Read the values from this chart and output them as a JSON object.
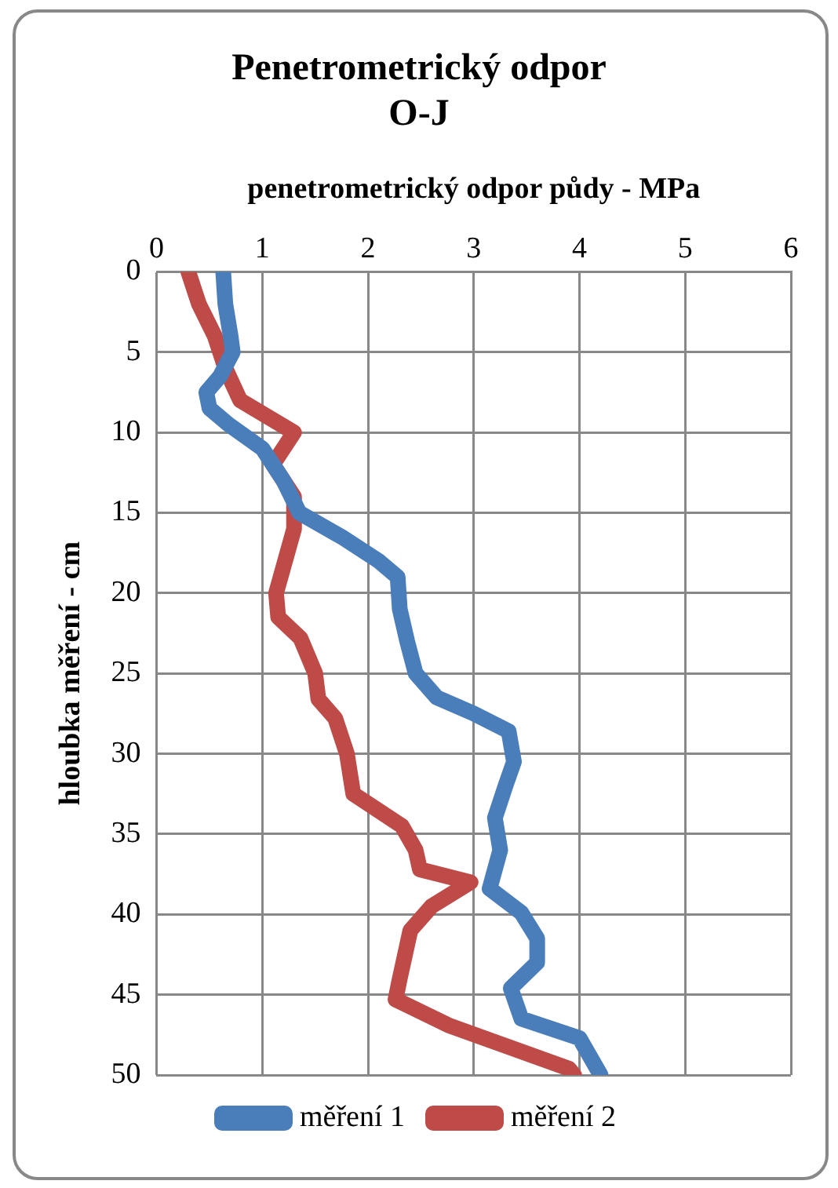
{
  "chart_data": {
    "type": "line",
    "title": "Penetrometrický odpor\nO-J",
    "xlabel": "penetrometrický odpor půdy - MPa",
    "ylabel": "hloubka měření - cm",
    "xlim": [
      0,
      6
    ],
    "xticks": [
      0,
      1,
      2,
      3,
      4,
      5,
      6
    ],
    "ylim": [
      50,
      0
    ],
    "yticks": [
      0,
      5,
      10,
      15,
      20,
      25,
      30,
      35,
      40,
      45,
      50
    ],
    "grid": true,
    "legend": "bottom",
    "marker": "none",
    "line_style": "solid",
    "series": [
      {
        "name": "měření 1",
        "color": "#4a7ebb",
        "x": [
          0.63,
          0.65,
          0.7,
          0.72,
          0.6,
          0.47,
          0.5,
          0.68,
          1.0,
          1.2,
          1.35,
          1.75,
          2.1,
          2.28,
          2.3,
          2.37,
          2.45,
          2.65,
          3.0,
          3.33,
          3.38,
          3.3,
          3.2,
          3.25,
          3.15,
          3.45,
          3.6,
          3.6,
          3.35,
          3.45,
          4.0,
          4.2
        ],
        "values": [
          0,
          2,
          4,
          5,
          6.5,
          7.5,
          8.5,
          9.5,
          11,
          13,
          15,
          16.5,
          18,
          19,
          21,
          23,
          25,
          26.5,
          27.5,
          28.6,
          30.5,
          32,
          34,
          36,
          38.4,
          39.9,
          41.5,
          43,
          44.6,
          46.5,
          47.7,
          50
        ]
      },
      {
        "name": "měření 2",
        "color": "#be4b48",
        "x": [
          0.3,
          0.4,
          0.55,
          0.65,
          0.79,
          1.3,
          1.1,
          1.3,
          1.3,
          1.13,
          1.15,
          1.36,
          1.5,
          1.53,
          1.69,
          1.8,
          1.86,
          2.32,
          2.45,
          2.49,
          2.97,
          2.6,
          2.4,
          2.3,
          2.26,
          2.76,
          3.9,
          3.95
        ],
        "values": [
          0,
          2,
          4,
          6,
          8,
          10,
          12,
          14,
          16,
          20,
          21.5,
          22.8,
          25,
          26.6,
          27.8,
          30,
          32.5,
          34.5,
          36,
          37.2,
          38,
          39.5,
          41,
          44,
          45.3,
          46.9,
          49.6,
          50
        ]
      }
    ]
  }
}
